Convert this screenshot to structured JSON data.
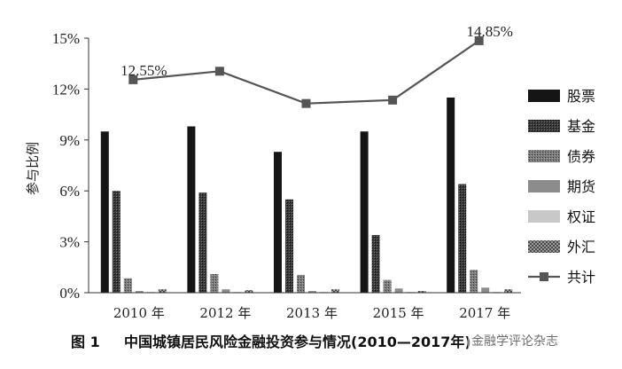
{
  "chart_data": {
    "type": "bar",
    "ylabel": "参与比例",
    "ylim": [
      0,
      15
    ],
    "yticks": [
      "0%",
      "3%",
      "6%",
      "9%",
      "12%",
      "15%"
    ],
    "yticks_values": [
      0,
      3,
      6,
      9,
      12,
      15
    ],
    "categories": [
      "2010 年",
      "2012 年",
      "2013 年",
      "2015 年",
      "2017 年"
    ],
    "series": [
      {
        "name": "股票",
        "values": [
          9.5,
          9.8,
          8.3,
          9.5,
          11.5
        ],
        "color": "#151515",
        "pattern": "solid"
      },
      {
        "name": "基金",
        "values": [
          6.0,
          5.9,
          5.5,
          3.4,
          6.4
        ],
        "color": "#2a2a2a",
        "pattern": "dense"
      },
      {
        "name": "债券",
        "values": [
          0.85,
          1.1,
          1.05,
          0.75,
          1.35
        ],
        "color": "#6a6a6a",
        "pattern": "medium"
      },
      {
        "name": "期货",
        "values": [
          0.1,
          0.2,
          0.1,
          0.25,
          0.3
        ],
        "color": "#8c8c8c",
        "pattern": "solid"
      },
      {
        "name": "权证",
        "values": [
          0.05,
          0.05,
          0.05,
          0.05,
          0.05
        ],
        "color": "#c8c8c8",
        "pattern": "solid"
      },
      {
        "name": "外汇",
        "values": [
          0.2,
          0.15,
          0.2,
          0.1,
          0.2
        ],
        "color": "#7a7a7a",
        "pattern": "check"
      }
    ],
    "line_series": {
      "name": "共计",
      "values": [
        12.55,
        13.05,
        11.15,
        11.35,
        14.85
      ],
      "color": "#555555"
    },
    "annotations": [
      {
        "text": "12.55%",
        "category_index": 0
      },
      {
        "text": "14.85%",
        "category_index": 4
      }
    ],
    "legend_position": "right",
    "grid": false
  },
  "caption": {
    "figure_label": "图 1",
    "title": "中国城镇居民风险金融投资参与情况(2010—2017年)"
  },
  "watermark": {
    "text": "金融学评论杂志"
  }
}
